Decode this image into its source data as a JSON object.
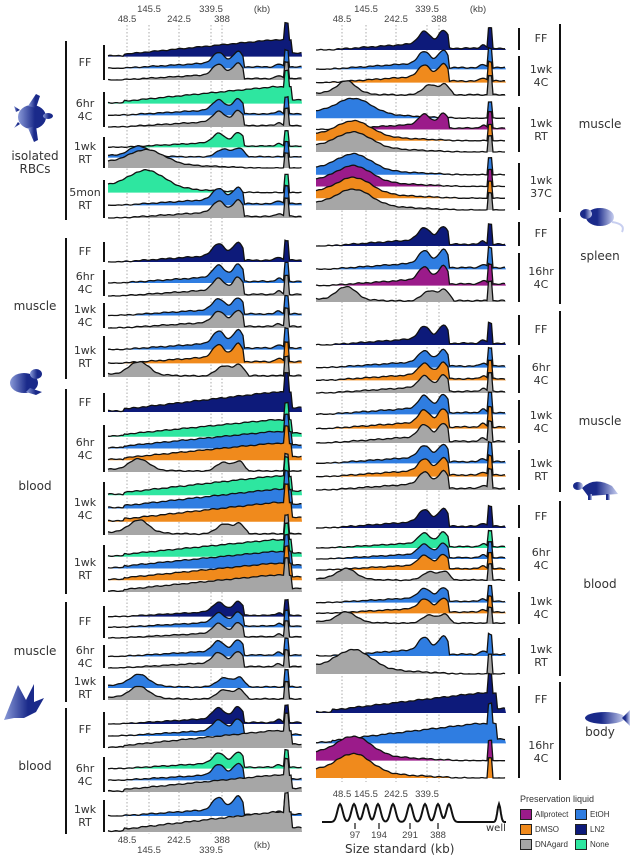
{
  "axis_ticks_top": [
    "48.5",
    "145.5",
    "242.5",
    "339.5",
    "388"
  ],
  "axis_unit": "(kb)",
  "size_standard": {
    "label": "Size standard (kb)",
    "upper_ticks": [
      "48.5",
      "145.5",
      "242.5",
      "339.5"
    ],
    "lower_ticks": [
      "97",
      "194",
      "291",
      "388"
    ],
    "well_label": "well"
  },
  "legend": {
    "title": "Preservation liquid",
    "items": [
      {
        "name": "Allprotect",
        "color": "#9b1b8a"
      },
      {
        "name": "EtOH",
        "color": "#2f7de1"
      },
      {
        "name": "DMSO",
        "color": "#f08a1c"
      },
      {
        "name": "LN2",
        "color": "#0d1a7a"
      },
      {
        "name": "DNAgard",
        "color": "#a6a6a6"
      },
      {
        "name": "None",
        "color": "#2ee6a0"
      }
    ]
  },
  "chart_data": {
    "type": "area",
    "x_axis": "fragment size (kb)",
    "x_ticks": [
      48.5,
      145.5,
      242.5,
      339.5,
      388
    ],
    "grid": "dotted vertical at size ticks",
    "panels": [
      {
        "sample": "isolated RBCs",
        "organism": "turtle",
        "side": "left",
        "groups": [
          {
            "condition": "FF",
            "traces": [
              [
                "LN2",
                "broad"
              ],
              [
                "EtOH",
                "intact"
              ],
              [
                "DNAgard",
                "intact"
              ]
            ]
          },
          {
            "condition": "6hr\n4C",
            "traces": [
              [
                "None",
                "broad"
              ],
              [
                "EtOH",
                "intact"
              ],
              [
                "DNAgard",
                "intact"
              ]
            ]
          },
          {
            "condition": "1wk\nRT",
            "traces": [
              [
                "None",
                "intact"
              ],
              [
                "EtOH",
                "mixed"
              ],
              [
                "DNAgard",
                "degraded"
              ]
            ]
          },
          {
            "condition": "5mon\nRT",
            "traces": [
              [
                "None",
                "degraded"
              ],
              [
                "EtOH",
                "intact"
              ],
              [
                "DNAgard",
                "intact"
              ]
            ]
          }
        ]
      },
      {
        "sample": "muscle",
        "organism": "frog",
        "side": "left",
        "groups": [
          {
            "condition": "FF",
            "traces": [
              [
                "LN2",
                "intact"
              ]
            ]
          },
          {
            "condition": "6hr\n4C",
            "traces": [
              [
                "EtOH",
                "intact"
              ],
              [
                "DNAgard",
                "intact"
              ]
            ]
          },
          {
            "condition": "1wk\n4C",
            "traces": [
              [
                "EtOH",
                "intact"
              ],
              [
                "DNAgard",
                "intact"
              ]
            ]
          },
          {
            "condition": "1wk\nRT",
            "traces": [
              [
                "EtOH",
                "intact"
              ],
              [
                "DMSO",
                "intact"
              ],
              [
                "DNAgard",
                "mixed"
              ]
            ]
          }
        ]
      },
      {
        "sample": "blood",
        "organism": "frog",
        "side": "left",
        "groups": [
          {
            "condition": "FF",
            "traces": [
              [
                "LN2",
                "broad"
              ]
            ]
          },
          {
            "condition": "6hr\n4C",
            "traces": [
              [
                "None",
                "broad"
              ],
              [
                "EtOH",
                "broad"
              ],
              [
                "DMSO",
                "broad"
              ],
              [
                "DNAgard",
                "mixed"
              ]
            ]
          },
          {
            "condition": "1wk\n4C",
            "traces": [
              [
                "None",
                "broad"
              ],
              [
                "EtOH",
                "broad"
              ],
              [
                "DMSO",
                "broad"
              ],
              [
                "DNAgard",
                "mixed"
              ]
            ]
          },
          {
            "condition": "1wk\nRT",
            "traces": [
              [
                "None",
                "broad"
              ],
              [
                "EtOH",
                "broad"
              ],
              [
                "DMSO",
                "broad"
              ],
              [
                "DNAgard",
                "broad"
              ]
            ]
          }
        ]
      },
      {
        "sample": "muscle",
        "organism": "bird",
        "side": "left",
        "groups": [
          {
            "condition": "FF",
            "traces": [
              [
                "LN2",
                "intact"
              ],
              [
                "EtOH",
                "intact"
              ],
              [
                "DNAgard",
                "intact"
              ]
            ]
          },
          {
            "condition": "6hr\n4C",
            "traces": [
              [
                "EtOH",
                "intact"
              ],
              [
                "DNAgard",
                "intact"
              ]
            ]
          },
          {
            "condition": "1wk\nRT",
            "traces": [
              [
                "EtOH",
                "mixed"
              ],
              [
                "DNAgard",
                "mixed"
              ]
            ]
          }
        ]
      },
      {
        "sample": "blood",
        "organism": "bird",
        "side": "left",
        "groups": [
          {
            "condition": "FF",
            "traces": [
              [
                "LN2",
                "intact"
              ],
              [
                "EtOH",
                "intact"
              ],
              [
                "DNAgard",
                "broad"
              ]
            ]
          },
          {
            "condition": "6hr\n4C",
            "traces": [
              [
                "None",
                "intact"
              ],
              [
                "EtOH",
                "intact"
              ],
              [
                "DNAgard",
                "broad"
              ]
            ]
          },
          {
            "condition": "1wk\nRT",
            "traces": [
              [
                "EtOH",
                "intact"
              ],
              [
                "DNAgard",
                "broad"
              ]
            ]
          }
        ]
      },
      {
        "sample": "muscle",
        "organism": "rodent",
        "side": "right",
        "groups": [
          {
            "condition": "FF",
            "traces": [
              [
                "LN2",
                "intact"
              ]
            ]
          },
          {
            "condition": "1wk\n4C",
            "traces": [
              [
                "EtOH",
                "intact"
              ],
              [
                "DMSO",
                "intact"
              ],
              [
                "DNAgard",
                "mixed"
              ]
            ]
          },
          {
            "condition": "1wk\nRT",
            "traces": [
              [
                "EtOH",
                "degraded"
              ],
              [
                "Allprotect",
                "intact"
              ],
              [
                "DMSO",
                "degraded"
              ],
              [
                "DNAgard",
                "degraded"
              ]
            ]
          },
          {
            "condition": "1wk\n37C",
            "traces": [
              [
                "EtOH",
                "degraded"
              ],
              [
                "Allprotect",
                "degraded"
              ],
              [
                "DMSO",
                "degraded"
              ],
              [
                "DNAgard",
                "degraded"
              ]
            ]
          }
        ]
      },
      {
        "sample": "spleen",
        "organism": "rodent",
        "side": "right",
        "groups": [
          {
            "condition": "FF",
            "traces": [
              [
                "LN2",
                "intact"
              ]
            ]
          },
          {
            "condition": "16hr\n4C",
            "traces": [
              [
                "EtOH",
                "intact"
              ],
              [
                "Allprotect",
                "intact"
              ],
              [
                "DNAgard",
                "mixed"
              ]
            ]
          }
        ]
      },
      {
        "sample": "muscle",
        "organism": "turtle",
        "side": "right",
        "groups": [
          {
            "condition": "FF",
            "traces": [
              [
                "LN2",
                "intact"
              ]
            ]
          },
          {
            "condition": "6hr\n4C",
            "traces": [
              [
                "EtOH",
                "intact"
              ],
              [
                "DMSO",
                "intact"
              ],
              [
                "DNAgard",
                "intact"
              ]
            ]
          },
          {
            "condition": "1wk\n4C",
            "traces": [
              [
                "EtOH",
                "intact"
              ],
              [
                "DMSO",
                "intact"
              ],
              [
                "DNAgard",
                "intact"
              ]
            ]
          },
          {
            "condition": "1wk\nRT",
            "traces": [
              [
                "EtOH",
                "intact"
              ],
              [
                "DMSO",
                "intact"
              ],
              [
                "DNAgard",
                "intact"
              ]
            ]
          }
        ]
      },
      {
        "sample": "blood",
        "organism": "turtle",
        "side": "right",
        "groups": [
          {
            "condition": "FF",
            "traces": [
              [
                "LN2",
                "intact"
              ]
            ]
          },
          {
            "condition": "6hr\n4C",
            "traces": [
              [
                "None",
                "intact"
              ],
              [
                "EtOH",
                "intact"
              ],
              [
                "DMSO",
                "intact"
              ],
              [
                "DNAgard",
                "mixed"
              ]
            ]
          },
          {
            "condition": "1wk\n4C",
            "traces": [
              [
                "EtOH",
                "intact"
              ],
              [
                "DMSO",
                "intact"
              ],
              [
                "DNAgard",
                "mixed"
              ]
            ]
          },
          {
            "condition": "1wk\nRT",
            "traces": [
              [
                "EtOH",
                "intact"
              ],
              [
                "DNAgard",
                "degraded"
              ]
            ]
          }
        ]
      },
      {
        "sample": "body",
        "organism": "fish",
        "side": "right",
        "groups": [
          {
            "condition": "FF",
            "traces": [
              [
                "LN2",
                "broad"
              ]
            ]
          },
          {
            "condition": "16hr\n4C",
            "traces": [
              [
                "EtOH",
                "broad"
              ],
              [
                "Allprotect",
                "degraded"
              ],
              [
                "DMSO",
                "degraded"
              ]
            ]
          }
        ]
      }
    ]
  }
}
